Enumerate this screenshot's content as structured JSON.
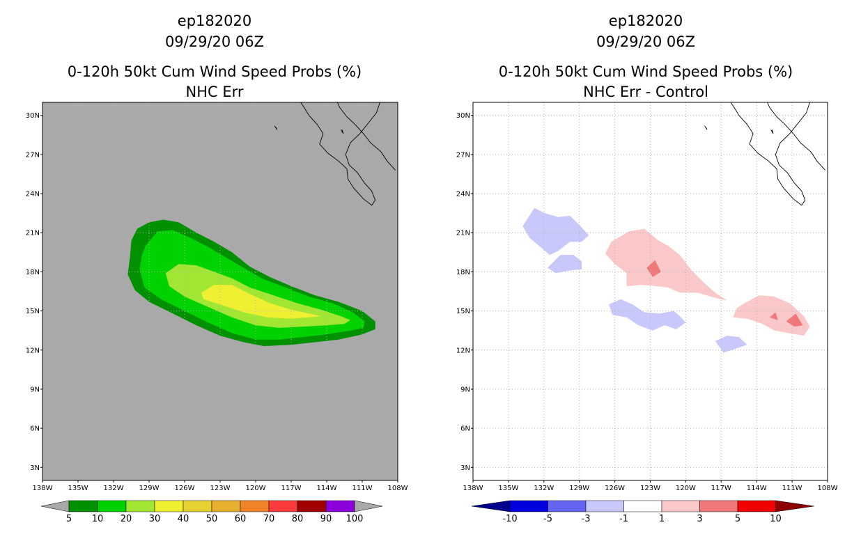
{
  "chart_data": [
    {
      "type": "heatmap",
      "storm_id": "ep182020",
      "date": "09/29/20 06Z",
      "title": "0-120h 50kt Cum Wind Speed Probs (%)",
      "subtitle": "NHC Err",
      "xlim": [
        -138,
        -108
      ],
      "ylim": [
        2,
        31
      ],
      "x_ticks": [
        -138,
        -135,
        -132,
        -129,
        -126,
        -123,
        -120,
        -117,
        -114,
        -111,
        -108
      ],
      "x_tick_labels": [
        "138W",
        "135W",
        "132W",
        "129W",
        "126W",
        "123W",
        "120W",
        "117W",
        "114W",
        "111W",
        "108W"
      ],
      "y_ticks": [
        3,
        6,
        9,
        12,
        15,
        18,
        21,
        24,
        27,
        30
      ],
      "y_tick_labels": [
        "3N",
        "6N",
        "9N",
        "12N",
        "15N",
        "18N",
        "21N",
        "24N",
        "27N",
        "30N"
      ],
      "grid": true,
      "background_color": "#a9a9a9",
      "colorbar": {
        "levels": [
          "5",
          "10",
          "20",
          "30",
          "40",
          "50",
          "60",
          "70",
          "80",
          "90",
          "100"
        ],
        "colors": [
          "#009000",
          "#00d200",
          "#a0e632",
          "#f0f032",
          "#e6d232",
          "#e6af2d",
          "#f08228",
          "#fa3c3c",
          "#a00000",
          "#8c00dc"
        ],
        "end_color": "#a9a9a9"
      },
      "contours": [
        {
          "level": 5,
          "color": "#009000",
          "points": [
            [
              -130,
              21.3
            ],
            [
              -129,
              21.8
            ],
            [
              -127.8,
              22
            ],
            [
              -126.5,
              21.8
            ],
            [
              -125,
              21
            ],
            [
              -123.5,
              20.3
            ],
            [
              -122,
              19.5
            ],
            [
              -120.5,
              18.4
            ],
            [
              -118.8,
              17.6
            ],
            [
              -117,
              16.9
            ],
            [
              -115,
              16.2
            ],
            [
              -113,
              15.7
            ],
            [
              -111,
              15
            ],
            [
              -109.9,
              14.2
            ],
            [
              -109.9,
              13.6
            ],
            [
              -111,
              13.2
            ],
            [
              -113,
              12.8
            ],
            [
              -115,
              12.6
            ],
            [
              -117,
              12.4
            ],
            [
              -119.3,
              12.3
            ],
            [
              -121,
              12.6
            ],
            [
              -123,
              13.1
            ],
            [
              -125,
              13.9
            ],
            [
              -127,
              14.8
            ],
            [
              -129,
              15.7
            ],
            [
              -130.2,
              16.6
            ],
            [
              -130.8,
              17.8
            ],
            [
              -130.6,
              19.2
            ],
            [
              -130.5,
              20.4
            ]
          ]
        },
        {
          "level": 10,
          "color": "#00d200",
          "points": [
            [
              -129.3,
              20
            ],
            [
              -128.3,
              21.1
            ],
            [
              -127,
              21.2
            ],
            [
              -125.5,
              20.6
            ],
            [
              -124,
              19.9
            ],
            [
              -122.5,
              19.1
            ],
            [
              -121,
              18.3
            ],
            [
              -119.5,
              17.5
            ],
            [
              -117.5,
              16.8
            ],
            [
              -115.5,
              16.1
            ],
            [
              -113.5,
              15.6
            ],
            [
              -111.8,
              14.9
            ],
            [
              -110.8,
              14.2
            ],
            [
              -110.9,
              13.7
            ],
            [
              -112,
              13.5
            ],
            [
              -114,
              13.2
            ],
            [
              -116,
              13
            ],
            [
              -118,
              12.8
            ],
            [
              -120,
              12.8
            ],
            [
              -122,
              13.3
            ],
            [
              -124,
              14.1
            ],
            [
              -126,
              15
            ],
            [
              -128,
              15.9
            ],
            [
              -129.4,
              16.8
            ],
            [
              -129.8,
              18.2
            ],
            [
              -129.6,
              19.3
            ]
          ]
        },
        {
          "level": 20,
          "color": "#a0e632",
          "points": [
            [
              -127.6,
              17.9
            ],
            [
              -126.5,
              18.6
            ],
            [
              -125,
              18.5
            ],
            [
              -123.5,
              18
            ],
            [
              -122,
              17.5
            ],
            [
              -120.5,
              16.8
            ],
            [
              -118.5,
              16.2
            ],
            [
              -116.5,
              15.6
            ],
            [
              -114.5,
              15.1
            ],
            [
              -112.8,
              14.6
            ],
            [
              -112,
              14.3
            ],
            [
              -112.5,
              14
            ],
            [
              -114,
              13.9
            ],
            [
              -116,
              13.8
            ],
            [
              -118,
              13.7
            ],
            [
              -120,
              13.9
            ],
            [
              -122,
              14.5
            ],
            [
              -124,
              15.3
            ],
            [
              -126,
              16.1
            ],
            [
              -127.3,
              16.9
            ]
          ]
        },
        {
          "level": 30,
          "color": "#f0f032",
          "points": [
            [
              -124.6,
              16.4
            ],
            [
              -123.5,
              17
            ],
            [
              -122,
              17
            ],
            [
              -120.5,
              16.3
            ],
            [
              -118.8,
              15.6
            ],
            [
              -117,
              15.1
            ],
            [
              -115.5,
              14.8
            ],
            [
              -114.5,
              14.6
            ],
            [
              -115.5,
              14.5
            ],
            [
              -117,
              14.4
            ],
            [
              -119,
              14.5
            ],
            [
              -121,
              14.9
            ],
            [
              -123,
              15.5
            ],
            [
              -124.4,
              15.9
            ]
          ]
        }
      ]
    },
    {
      "type": "heatmap",
      "storm_id": "ep182020",
      "date": "09/29/20 06Z",
      "title": "0-120h 50kt Cum Wind Speed Probs (%)",
      "subtitle": "NHC Err - Control",
      "xlim": [
        -138,
        -108
      ],
      "ylim": [
        2,
        31
      ],
      "x_ticks": [
        -138,
        -135,
        -132,
        -129,
        -126,
        -123,
        -120,
        -117,
        -114,
        -111,
        -108
      ],
      "x_tick_labels": [
        "138W",
        "135W",
        "132W",
        "129W",
        "126W",
        "123W",
        "120W",
        "117W",
        "114W",
        "111W",
        "108W"
      ],
      "y_ticks": [
        3,
        6,
        9,
        12,
        15,
        18,
        21,
        24,
        27,
        30
      ],
      "y_tick_labels": [
        "3N",
        "6N",
        "9N",
        "12N",
        "15N",
        "18N",
        "21N",
        "24N",
        "27N",
        "30N"
      ],
      "grid": true,
      "background_color": "#ffffff",
      "colorbar": {
        "levels": [
          "-10",
          "-5",
          "-3",
          "-1",
          "1",
          "3",
          "5",
          "10"
        ],
        "colors": [
          "#0000dc",
          "#6464f0",
          "#c8c8fa",
          "#ffffff",
          "#fac8c8",
          "#f07878",
          "#f00000"
        ],
        "start_color": "#00008c",
        "end_color": "#8c0000"
      },
      "contours": [
        {
          "level": -1,
          "color": "#c8c8fa",
          "points": [
            [
              -133.8,
              21.5
            ],
            [
              -132.8,
              22.9
            ],
            [
              -131.9,
              22.5
            ],
            [
              -130.8,
              22.2
            ],
            [
              -129.8,
              22.3
            ],
            [
              -128.9,
              21.5
            ],
            [
              -128.2,
              20.8
            ],
            [
              -128.8,
              20.3
            ],
            [
              -129.8,
              20.3
            ],
            [
              -130.8,
              19.6
            ],
            [
              -131.5,
              19.3
            ],
            [
              -132.3,
              19.9
            ],
            [
              -133.2,
              20.6
            ]
          ]
        },
        {
          "level": -1,
          "color": "#c8c8fa",
          "points": [
            [
              -131.7,
              18.3
            ],
            [
              -130.6,
              19.3
            ],
            [
              -129.5,
              19.3
            ],
            [
              -128.8,
              18.8
            ],
            [
              -128.8,
              18.2
            ],
            [
              -129.8,
              18.1
            ],
            [
              -131,
              17.9
            ]
          ]
        },
        {
          "level": -1,
          "color": "#c8c8fa",
          "points": [
            [
              -126.5,
              15.5
            ],
            [
              -125.5,
              15.9
            ],
            [
              -124.5,
              15.5
            ],
            [
              -123.5,
              14.9
            ],
            [
              -122.2,
              14.8
            ],
            [
              -121,
              15
            ],
            [
              -120.5,
              14.6
            ],
            [
              -120,
              14.1
            ],
            [
              -120.8,
              13.6
            ],
            [
              -121.8,
              13.9
            ],
            [
              -122.8,
              13.5
            ],
            [
              -124,
              13.9
            ],
            [
              -125,
              14.5
            ],
            [
              -126.2,
              14.7
            ]
          ]
        },
        {
          "level": -1,
          "color": "#c8c8fa",
          "points": [
            [
              -117.5,
              12.7
            ],
            [
              -116.5,
              13.1
            ],
            [
              -115.5,
              13
            ],
            [
              -114.8,
              12.4
            ],
            [
              -115.8,
              12.1
            ],
            [
              -116.8,
              11.8
            ],
            [
              -117.2,
              12.3
            ]
          ]
        },
        {
          "level": 1,
          "color": "#fac8c8",
          "points": [
            [
              -126.3,
              20.3
            ],
            [
              -124.8,
              21.1
            ],
            [
              -123.5,
              21.3
            ],
            [
              -122.3,
              20.4
            ],
            [
              -121.5,
              20
            ],
            [
              -120.5,
              19.3
            ],
            [
              -119.5,
              18.1
            ],
            [
              -118.5,
              17.2
            ],
            [
              -117.5,
              16.4
            ],
            [
              -116.5,
              15.8
            ],
            [
              -117.5,
              16
            ],
            [
              -119,
              16.4
            ],
            [
              -120.5,
              16.4
            ],
            [
              -121.5,
              16.8
            ],
            [
              -122.5,
              16.9
            ],
            [
              -123.7,
              17
            ],
            [
              -125,
              16.9
            ],
            [
              -125,
              17.9
            ],
            [
              -126,
              18.6
            ],
            [
              -126.8,
              19.4
            ]
          ]
        },
        {
          "level": 1,
          "color": "#fac8c8",
          "points": [
            [
              -115,
              15.6
            ],
            [
              -113.8,
              16.2
            ],
            [
              -112.5,
              16.1
            ],
            [
              -111.2,
              15.6
            ],
            [
              -110,
              14.6
            ],
            [
              -109.5,
              13.8
            ],
            [
              -110,
              13.1
            ],
            [
              -111.3,
              13.3
            ],
            [
              -112.5,
              13.5
            ],
            [
              -113.5,
              14
            ],
            [
              -114.8,
              14.4
            ],
            [
              -116,
              14.5
            ],
            [
              -115.7,
              15.2
            ]
          ]
        },
        {
          "level": 3,
          "color": "#f07878",
          "points": [
            [
              -123.3,
              18.3
            ],
            [
              -122.6,
              18.9
            ],
            [
              -122.1,
              18
            ],
            [
              -122.8,
              17.6
            ]
          ]
        },
        {
          "level": 3,
          "color": "#f07878",
          "points": [
            [
              -111.5,
              14.2
            ],
            [
              -110.7,
              14.8
            ],
            [
              -110.1,
              13.9
            ],
            [
              -110.8,
              13.8
            ]
          ]
        },
        {
          "level": 3,
          "color": "#f07878",
          "points": [
            [
              -112.9,
              14.5
            ],
            [
              -112.4,
              14.9
            ],
            [
              -112.2,
              14.3
            ]
          ]
        }
      ]
    }
  ]
}
